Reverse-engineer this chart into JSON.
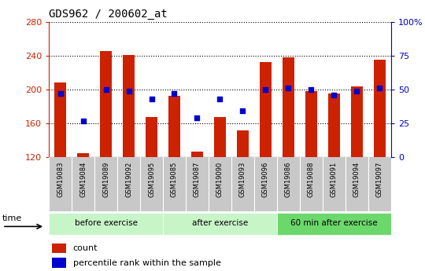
{
  "title": "GDS962 / 200602_at",
  "samples": [
    "GSM19083",
    "GSM19084",
    "GSM19089",
    "GSM19092",
    "GSM19095",
    "GSM19085",
    "GSM19087",
    "GSM19090",
    "GSM19093",
    "GSM19096",
    "GSM19086",
    "GSM19088",
    "GSM19091",
    "GSM19094",
    "GSM19097"
  ],
  "counts": [
    208,
    125,
    245,
    241,
    167,
    192,
    127,
    167,
    152,
    232,
    238,
    198,
    195,
    204,
    235
  ],
  "percentile_ranks": [
    47,
    27,
    50,
    49,
    43,
    47,
    29,
    43,
    34,
    50,
    51,
    50,
    46,
    49,
    51
  ],
  "group_labels": [
    "before exercise",
    "after exercise",
    "60 min after exercise"
  ],
  "group_starts": [
    0,
    5,
    10
  ],
  "group_ends": [
    5,
    10,
    15
  ],
  "group_colors": [
    "#c8f5c8",
    "#c8f5c8",
    "#6cd86c"
  ],
  "ylim_left": [
    120,
    280
  ],
  "ylim_right": [
    0,
    100
  ],
  "yticks_left": [
    120,
    160,
    200,
    240,
    280
  ],
  "yticks_right": [
    0,
    25,
    50,
    75,
    100
  ],
  "yticklabels_right": [
    "0",
    "25",
    "50",
    "75",
    "100%"
  ],
  "bar_color": "#cc2200",
  "dot_color": "#0000cc",
  "bar_width": 0.5,
  "bg_xtick": "#c8c8c8",
  "left_axis_color": "#cc2200",
  "right_axis_color": "#0000cc"
}
